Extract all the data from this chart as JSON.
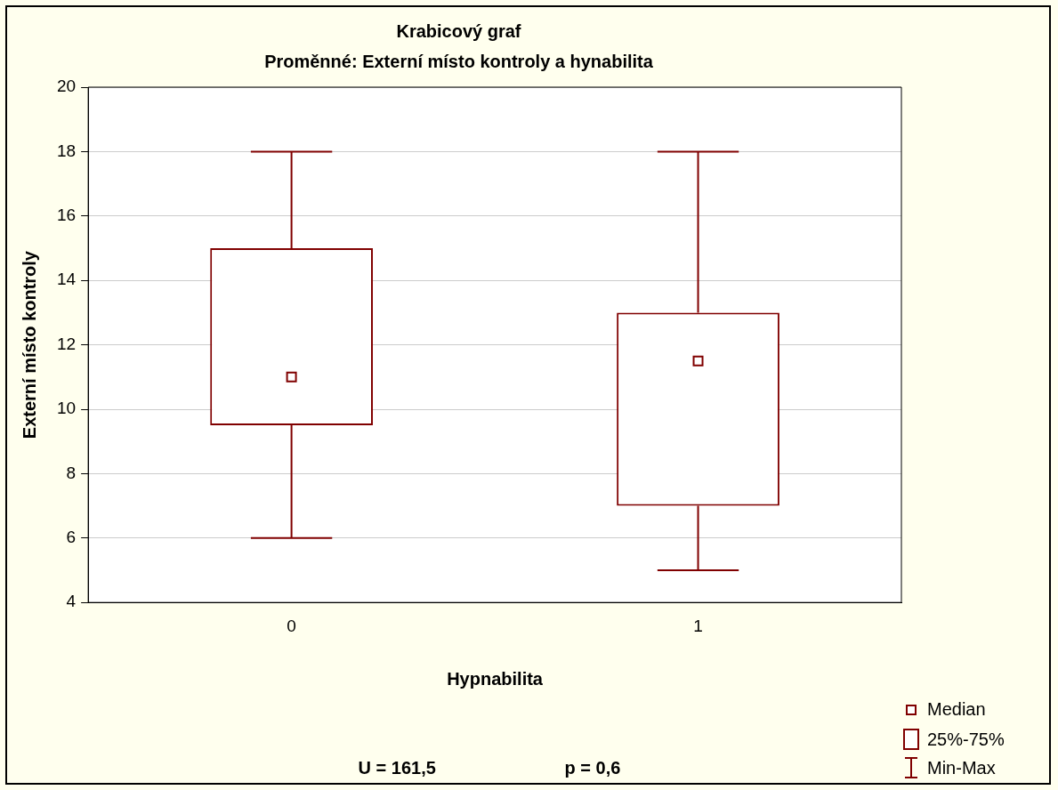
{
  "chart_data": {
    "type": "box",
    "title": "Krabicový graf",
    "subtitle": "Proměnné: Externí místo kontroly a hynabilita",
    "xlabel": "Hypnabilita",
    "ylabel": "Externí místo kontroly",
    "categories": [
      "0",
      "1"
    ],
    "color": "#800000",
    "boxes": [
      {
        "low": 6,
        "q1": 9.5,
        "median": 11,
        "q3": 15,
        "high": 18
      },
      {
        "low": 5,
        "q1": 7,
        "median": 11.5,
        "q3": 13,
        "high": 18
      }
    ],
    "ylim": [
      4,
      20
    ],
    "yticks": [
      4,
      6,
      8,
      10,
      12,
      14,
      16,
      18,
      20
    ],
    "grid": "y",
    "annotations": [
      "U = 161,5",
      "p = 0,6",
      "Median",
      "25%-75%",
      "Min-Max"
    ]
  }
}
